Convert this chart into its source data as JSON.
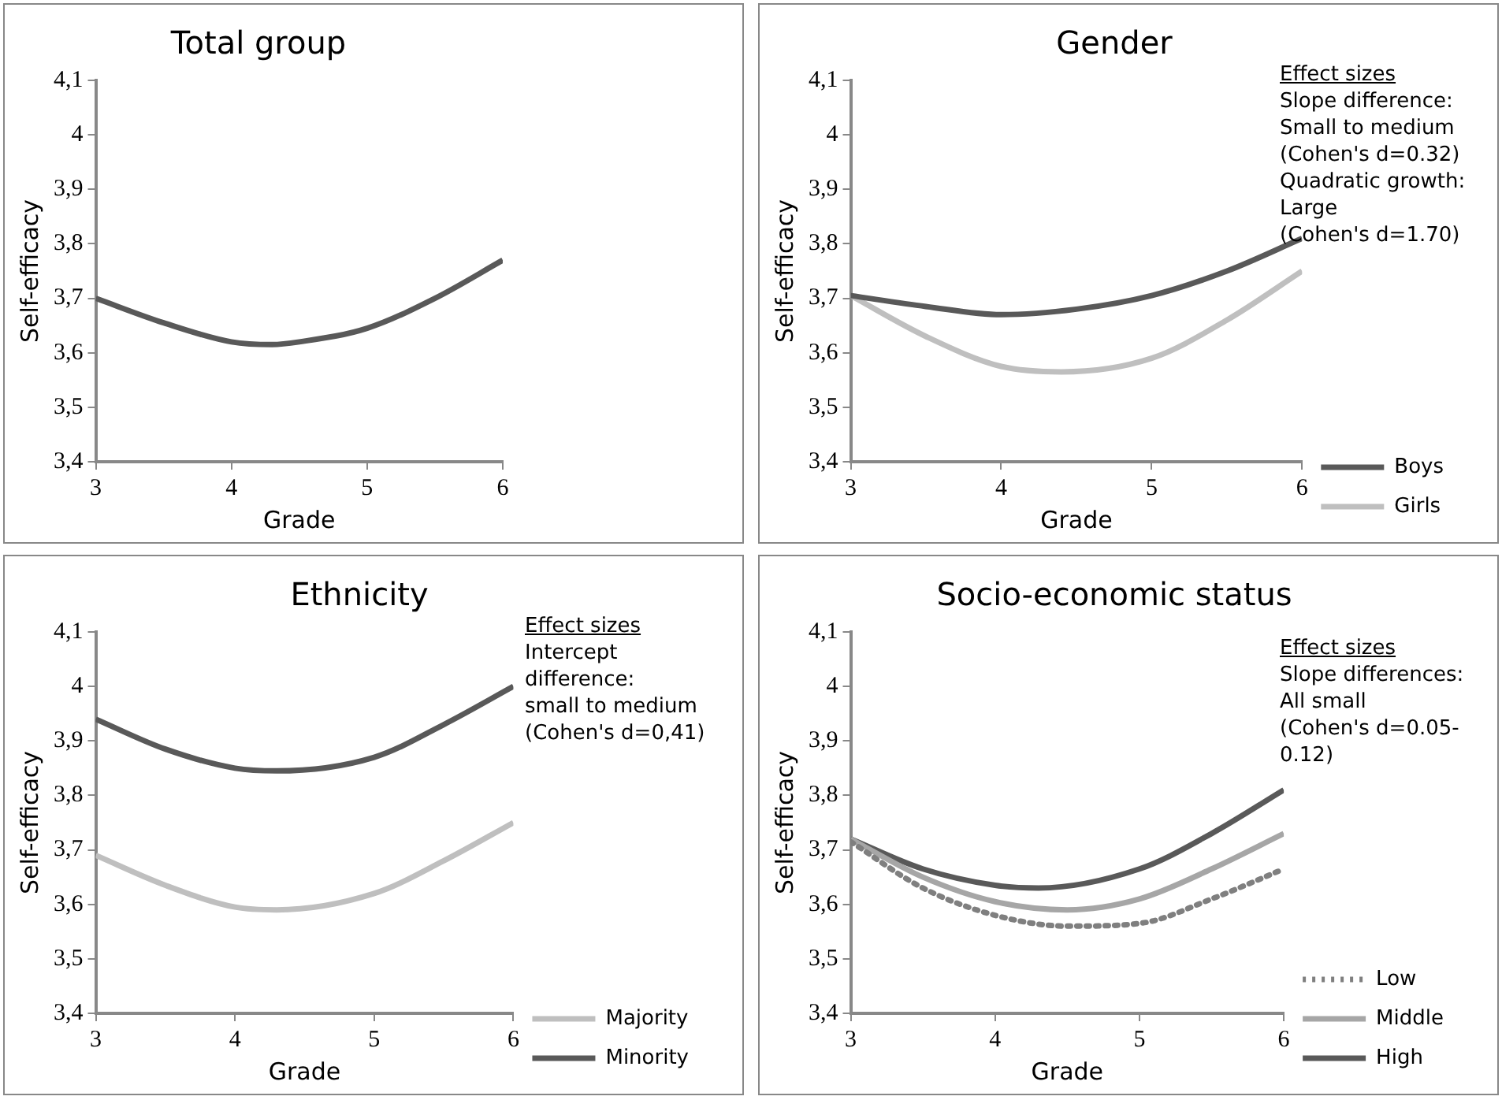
{
  "chart_data": [
    {
      "type": "line",
      "title": "Total group",
      "xlabel": "Grade",
      "ylabel": "Self-efficacy",
      "xlim": [
        3,
        6
      ],
      "xticks": [
        3,
        4,
        5,
        6
      ],
      "ylim": [
        3.4,
        4.1
      ],
      "yticks": [
        {
          "value": 3.4,
          "label": "3,4"
        },
        {
          "value": 3.5,
          "label": "3,5"
        },
        {
          "value": 3.6,
          "label": "3,6"
        },
        {
          "value": 3.7,
          "label": "3,7"
        },
        {
          "value": 3.8,
          "label": "3,8"
        },
        {
          "value": 3.9,
          "label": "3,9"
        },
        {
          "value": 4,
          "label": "4"
        },
        {
          "value": 4.1,
          "label": "4,1"
        }
      ],
      "marker": "none",
      "legend": false,
      "series": [
        {
          "color": "#595959",
          "x": [
            3,
            3.5,
            4,
            4.3,
            4.5,
            5,
            5.5,
            6
          ],
          "values": [
            3.7,
            3.655,
            3.62,
            3.615,
            3.62,
            3.645,
            3.7,
            3.77
          ]
        }
      ]
    },
    {
      "type": "line",
      "title": "Gender",
      "xlabel": "Grade",
      "ylabel": "Self-efficacy",
      "xlim": [
        3,
        6
      ],
      "xticks": [
        3,
        4,
        5,
        6
      ],
      "ylim": [
        3.4,
        4.1
      ],
      "yticks": [
        {
          "value": 3.4,
          "label": "3,4"
        },
        {
          "value": 3.5,
          "label": "3,5"
        },
        {
          "value": 3.6,
          "label": "3,6"
        },
        {
          "value": 3.7,
          "label": "3,7"
        },
        {
          "value": 3.8,
          "label": "3,8"
        },
        {
          "value": 3.9,
          "label": "3,9"
        },
        {
          "value": 4,
          "label": "4"
        },
        {
          "value": 4.1,
          "label": "4,1"
        }
      ],
      "marker": "none",
      "legend": "right",
      "annotations": [
        "Effect sizes",
        "Slope difference:",
        "Small to medium",
        "(Cohen's d=0.32)",
        "Quadratic growth:",
        "Large",
        "(Cohen's d=1.70)"
      ],
      "series": [
        {
          "name": "Boys",
          "color": "#595959",
          "x": [
            3,
            3.5,
            4,
            4.5,
            5,
            5.5,
            6
          ],
          "values": [
            3.705,
            3.685,
            3.67,
            3.68,
            3.705,
            3.75,
            3.81
          ]
        },
        {
          "name": "Girls",
          "color": "#bfbfbf",
          "x": [
            3,
            3.5,
            4,
            4.4,
            5,
            5.5,
            6
          ],
          "values": [
            3.705,
            3.63,
            3.575,
            3.565,
            3.59,
            3.66,
            3.75
          ]
        }
      ]
    },
    {
      "type": "line",
      "title": "Ethnicity",
      "xlabel": "Grade",
      "ylabel": "Self-efficacy",
      "xlim": [
        3,
        6
      ],
      "xticks": [
        3,
        4,
        5,
        6
      ],
      "ylim": [
        3.4,
        4.1
      ],
      "yticks": [
        {
          "value": 3.4,
          "label": "3,4"
        },
        {
          "value": 3.5,
          "label": "3,5"
        },
        {
          "value": 3.6,
          "label": "3,6"
        },
        {
          "value": 3.7,
          "label": "3,7"
        },
        {
          "value": 3.8,
          "label": "3,8"
        },
        {
          "value": 3.9,
          "label": "3,9"
        },
        {
          "value": 4,
          "label": "4"
        },
        {
          "value": 4.1,
          "label": "4,1"
        }
      ],
      "marker": "none",
      "legend": "right",
      "annotations": [
        "Effect sizes",
        "Intercept",
        "difference:",
        "small to medium",
        "(Cohen's d=0,41)"
      ],
      "series": [
        {
          "name": "Majority",
          "color": "#bfbfbf",
          "x": [
            3,
            3.5,
            4,
            4.3,
            5,
            5.5,
            6
          ],
          "values": [
            3.69,
            3.635,
            3.595,
            3.59,
            3.62,
            3.68,
            3.75
          ]
        },
        {
          "name": "Minority",
          "color": "#595959",
          "x": [
            3,
            3.5,
            4,
            4.3,
            5,
            5.5,
            6
          ],
          "values": [
            3.94,
            3.885,
            3.85,
            3.845,
            3.87,
            3.93,
            4.0
          ]
        }
      ]
    },
    {
      "type": "line",
      "title": "Socio-economic status",
      "xlabel": "Grade",
      "ylabel": "Self-efficacy",
      "xlim": [
        3,
        6
      ],
      "xticks": [
        3,
        4,
        5,
        6
      ],
      "ylim": [
        3.4,
        4.1
      ],
      "yticks": [
        {
          "value": 3.4,
          "label": "3,4"
        },
        {
          "value": 3.5,
          "label": "3,5"
        },
        {
          "value": 3.6,
          "label": "3,6"
        },
        {
          "value": 3.7,
          "label": "3,7"
        },
        {
          "value": 3.8,
          "label": "3,8"
        },
        {
          "value": 3.9,
          "label": "3,9"
        },
        {
          "value": 4,
          "label": "4"
        },
        {
          "value": 4.1,
          "label": "4,1"
        }
      ],
      "marker": "none",
      "legend": "right",
      "annotations": [
        "Effect sizes",
        "Slope differences:",
        "All small",
        "(Cohen's d=0.05-",
        "0.12)"
      ],
      "series": [
        {
          "name": "Low",
          "color": "#7f7f7f",
          "line_style": "dotted",
          "x": [
            3,
            3.5,
            4,
            4.5,
            5,
            5.5,
            6
          ],
          "values": [
            3.715,
            3.63,
            3.58,
            3.56,
            3.565,
            3.61,
            3.665
          ]
        },
        {
          "name": "Middle",
          "color": "#a6a6a6",
          "x": [
            3,
            3.5,
            4,
            4.5,
            5,
            5.5,
            6
          ],
          "values": [
            3.72,
            3.65,
            3.605,
            3.59,
            3.61,
            3.665,
            3.73
          ]
        },
        {
          "name": "High",
          "color": "#595959",
          "x": [
            3,
            3.5,
            4,
            4.3,
            5,
            5.5,
            6
          ],
          "values": [
            3.72,
            3.665,
            3.635,
            3.63,
            3.665,
            3.73,
            3.81
          ]
        }
      ]
    }
  ]
}
